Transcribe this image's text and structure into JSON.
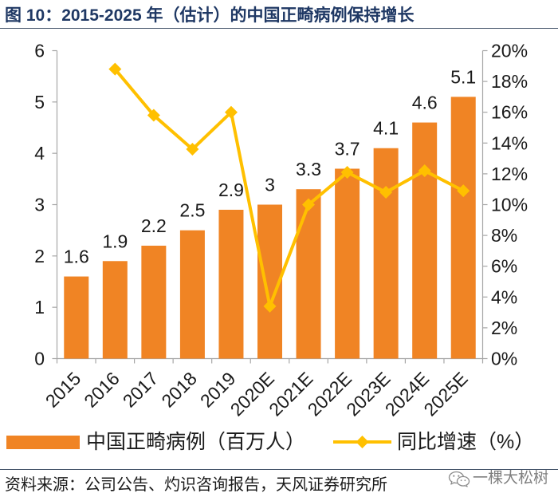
{
  "colors": {
    "bar": "#F08424",
    "line": "#FFC000",
    "title": "#1F3864",
    "axis": "#A6A6A6",
    "text": "#1A1A1A",
    "rule": "#44546A",
    "watermark": "#7F7F7F"
  },
  "chart_data": {
    "type": "bar",
    "title": "图 10：2015-2025 年（估计）的中国正畸病例保持增长",
    "categories": [
      "2015",
      "2016",
      "2017",
      "2018",
      "2019",
      "2020E",
      "2021E",
      "2022E",
      "2023E",
      "2024E",
      "2025E"
    ],
    "series": [
      {
        "name": "中国正畸病例（百万人）",
        "type": "bar",
        "values": [
          1.6,
          1.9,
          2.2,
          2.5,
          2.9,
          3.0,
          3.3,
          3.7,
          4.1,
          4.6,
          5.1
        ],
        "labels": [
          "1.6",
          "1.9",
          "2.2",
          "2.5",
          "2.9",
          "3",
          "3.3",
          "3.7",
          "4.1",
          "4.6",
          "5.1"
        ]
      },
      {
        "name": "同比增速（%）",
        "type": "line",
        "values": [
          null,
          18.8,
          15.8,
          13.6,
          16.0,
          3.4,
          10.0,
          12.1,
          10.8,
          12.2,
          10.9
        ]
      }
    ],
    "y_left": {
      "min": 0,
      "max": 6,
      "step": 1,
      "tick_labels": [
        "0",
        "1",
        "2",
        "3",
        "4",
        "5",
        "6"
      ]
    },
    "y_right": {
      "min": 0,
      "max": 20,
      "step": 2,
      "tick_labels": [
        "0%",
        "2%",
        "4%",
        "6%",
        "8%",
        "10%",
        "12%",
        "14%",
        "16%",
        "18%",
        "20%"
      ]
    },
    "grid": false,
    "legend_position": "bottom"
  },
  "source": "资料来源：公司公告、灼识咨询报告，天风证券研究所",
  "watermark": {
    "icon": "wechat-icon",
    "text": "一棵大松树"
  }
}
